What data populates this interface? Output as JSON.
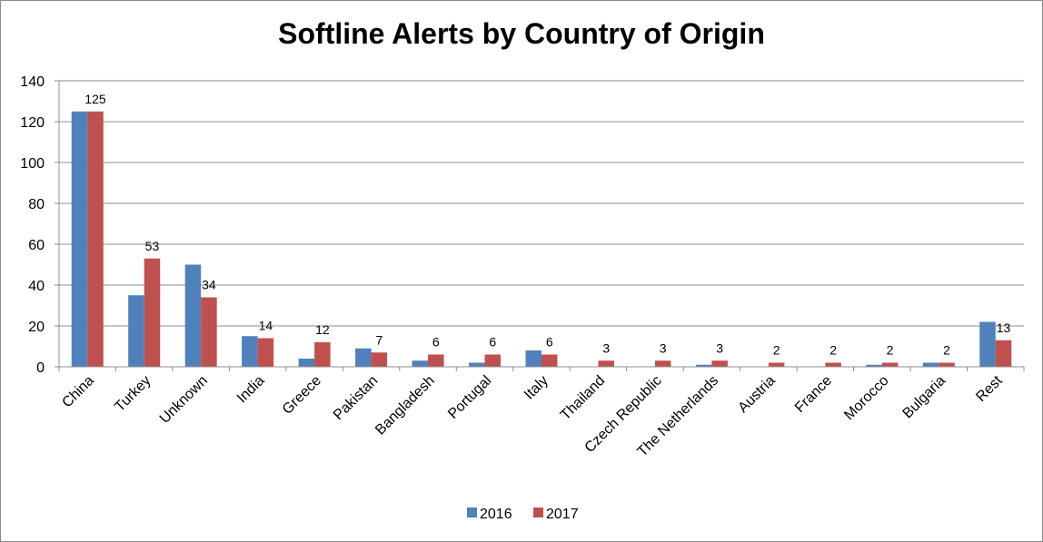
{
  "chart_data": {
    "type": "bar",
    "title": "Softline Alerts by Country of Origin",
    "xlabel": "",
    "ylabel": "",
    "ylim": [
      0,
      140
    ],
    "yticks": [
      0,
      20,
      40,
      60,
      80,
      100,
      120,
      140
    ],
    "grid": true,
    "legend_position": "bottom",
    "categories": [
      "China",
      "Turkey",
      "Unknown",
      "India",
      "Greece",
      "Pakistan",
      "Bangladesh",
      "Portugal",
      "Italy",
      "Thailand",
      "Czech Republic",
      "The Netherlands",
      "Austria",
      "France",
      "Morocco",
      "Bulgaria",
      "Rest"
    ],
    "series": [
      {
        "name": "2016",
        "color": "#4f81bd",
        "values": [
          125,
          35,
          50,
          15,
          4,
          9,
          3,
          2,
          8,
          0,
          0,
          1,
          0,
          0,
          1,
          2,
          22
        ]
      },
      {
        "name": "2017",
        "color": "#c0504d",
        "values": [
          125,
          53,
          34,
          14,
          12,
          7,
          6,
          6,
          6,
          3,
          3,
          3,
          2,
          2,
          2,
          2,
          13
        ]
      }
    ],
    "data_labels_series": "2017"
  }
}
